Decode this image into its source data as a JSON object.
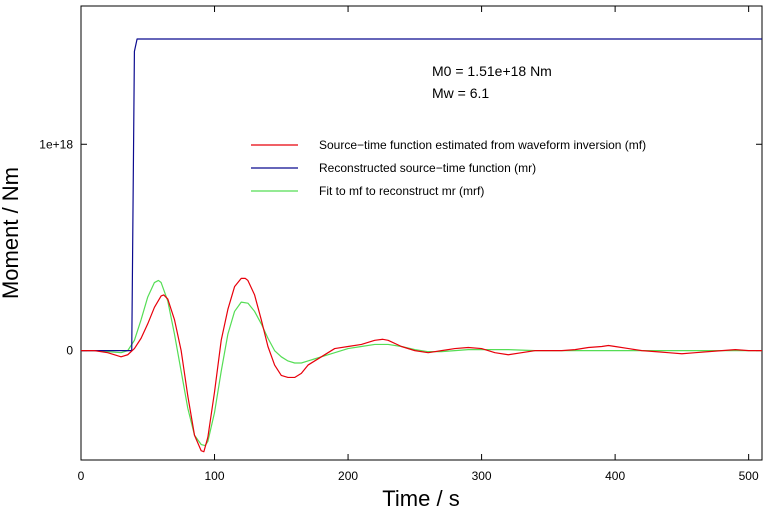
{
  "chart_data": {
    "type": "line",
    "title": "",
    "xlabel": "Time / s",
    "ylabel": "Moment / Nm",
    "xlim": [
      0,
      510
    ],
    "ylim": [
      -5.3e+17,
      1.67e+18
    ],
    "x_ticks": [
      0,
      100,
      200,
      300,
      400,
      500
    ],
    "x_tick_labels": [
      "0",
      "100",
      "200",
      "300",
      "400",
      "500"
    ],
    "y_ticks": [
      0,
      1e+18
    ],
    "y_tick_labels": [
      "0",
      "1e+18"
    ],
    "grid": false,
    "legend_position": "right",
    "annotations": [
      "M0 = 1.51e+18 Nm",
      "Mw = 6.1"
    ],
    "series": [
      {
        "name": "Source−time function estimated from waveform inversion (mf)",
        "color": "#e8000b",
        "x": [
          0,
          10,
          20,
          30,
          35,
          40,
          45,
          50,
          55,
          60,
          62,
          65,
          70,
          75,
          80,
          85,
          90,
          92,
          95,
          100,
          105,
          110,
          115,
          120,
          123,
          125,
          130,
          135,
          140,
          145,
          150,
          155,
          160,
          165,
          170,
          180,
          190,
          200,
          210,
          220,
          226,
          230,
          240,
          250,
          260,
          270,
          280,
          290,
          300,
          310,
          320,
          330,
          340,
          350,
          360,
          370,
          380,
          390,
          395,
          400,
          410,
          420,
          430,
          440,
          450,
          460,
          470,
          480,
          490,
          500,
          510
        ],
        "y": [
          0,
          0,
          -1e+16,
          -3e+16,
          -2e+16,
          1e+16,
          6e+16,
          1.3e+17,
          2.1e+17,
          2.65e+17,
          2.7e+17,
          2.5e+17,
          1.5e+17,
          0,
          -2.2e+17,
          -4.1e+17,
          -4.85e+17,
          -4.9e+17,
          -4.2e+17,
          -2e+17,
          5e+16,
          2e+17,
          3.1e+17,
          3.5e+17,
          3.5e+17,
          3.4e+17,
          2.7e+17,
          1.5e+17,
          2e+16,
          -7e+16,
          -1.2e+17,
          -1.3e+17,
          -1.3e+17,
          -1.1e+17,
          -7e+16,
          -3e+16,
          1e+16,
          2e+16,
          3e+16,
          5e+16,
          5.5e+16,
          5e+16,
          2e+16,
          0,
          -1e+16,
          0,
          1e+16,
          1.5e+16,
          1e+16,
          -1e+16,
          -2e+16,
          -1e+16,
          0,
          0,
          0,
          5000000000000000.0,
          1.5e+16,
          2e+16,
          2.5e+16,
          2e+16,
          1e+16,
          0,
          -5000000000000000.0,
          -1e+16,
          -1.5e+16,
          -1e+16,
          -5000000000000000.0,
          0,
          5000000000000000.0,
          0,
          0
        ]
      },
      {
        "name": "Reconstructed source−time function (mr)",
        "color": "#0b0b8f",
        "x": [
          0,
          38,
          40,
          42,
          510
        ],
        "y": [
          0,
          0,
          1.45e+18,
          1.51e+18,
          1.51e+18
        ]
      },
      {
        "name": "Fit to mf to reconstruct mr (mrf)",
        "color": "#55dd55",
        "x": [
          0,
          10,
          20,
          30,
          35,
          40,
          45,
          50,
          55,
          58,
          60,
          65,
          70,
          75,
          80,
          85,
          90,
          93,
          95,
          100,
          105,
          110,
          115,
          120,
          125,
          130,
          135,
          140,
          145,
          150,
          155,
          160,
          165,
          170,
          175,
          180,
          190,
          200,
          210,
          220,
          226,
          230,
          240,
          250,
          260,
          270,
          280,
          290,
          300,
          320,
          340,
          360,
          380,
          400,
          420,
          440,
          460,
          480,
          500,
          510
        ],
        "y": [
          0,
          0,
          -5000000000000000.0,
          -1e+16,
          0,
          5e+16,
          1.5e+17,
          2.6e+17,
          3.3e+17,
          3.4e+17,
          3.3e+17,
          2.4e+17,
          8e+16,
          -1e+17,
          -2.8e+17,
          -4.1e+17,
          -4.55e+17,
          -4.6e+17,
          -4.4e+17,
          -3e+17,
          -1e+17,
          8e+16,
          1.9e+17,
          2.35e+17,
          2.3e+17,
          1.9e+17,
          1.3e+17,
          6e+16,
          0,
          -3e+16,
          -5e+16,
          -6e+16,
          -6e+16,
          -5e+16,
          -4e+16,
          -3e+16,
          -1e+16,
          1e+16,
          2e+16,
          3e+16,
          3e+16,
          3e+16,
          2e+16,
          5000000000000000.0,
          -5000000000000000.0,
          -5000000000000000.0,
          0,
          5000000000000000.0,
          5000000000000000.0,
          5000000000000000.0,
          0,
          0,
          0,
          0,
          0,
          0,
          0,
          0,
          0,
          0
        ]
      }
    ]
  }
}
